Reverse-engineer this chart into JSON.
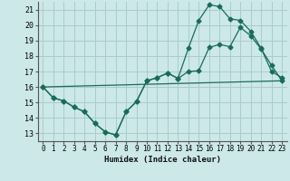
{
  "xlabel": "Humidex (Indice chaleur)",
  "background_color": "#cce8e8",
  "grid_color": "#aacccc",
  "line_color": "#1a6b5a",
  "xlim": [
    -0.5,
    23.5
  ],
  "ylim": [
    12.5,
    21.5
  ],
  "yticks": [
    13,
    14,
    15,
    16,
    17,
    18,
    19,
    20,
    21
  ],
  "xticks": [
    0,
    1,
    2,
    3,
    4,
    5,
    6,
    7,
    8,
    9,
    10,
    11,
    12,
    13,
    14,
    15,
    16,
    17,
    18,
    19,
    20,
    21,
    22,
    23
  ],
  "line1_x": [
    0,
    1,
    2,
    3,
    4,
    5,
    6,
    7,
    8,
    9,
    10,
    11,
    12,
    13,
    14,
    15,
    16,
    17,
    18,
    19,
    20,
    21,
    22,
    23
  ],
  "line1_y": [
    16.0,
    15.3,
    15.1,
    14.7,
    14.4,
    13.65,
    13.1,
    12.9,
    14.4,
    15.05,
    16.4,
    16.6,
    16.9,
    16.55,
    17.0,
    17.05,
    18.55,
    18.75,
    18.6,
    19.85,
    19.3,
    18.45,
    17.4,
    16.4
  ],
  "line2_x": [
    0,
    1,
    2,
    3,
    4,
    5,
    6,
    7,
    8,
    9,
    10,
    11,
    12,
    13,
    14,
    15,
    16,
    17,
    18,
    19,
    20,
    21,
    22,
    23
  ],
  "line2_y": [
    16.0,
    15.3,
    15.1,
    14.7,
    14.4,
    13.65,
    13.1,
    12.9,
    14.4,
    15.05,
    16.4,
    16.6,
    16.9,
    16.55,
    18.5,
    20.3,
    21.3,
    21.2,
    20.4,
    20.3,
    19.6,
    18.5,
    17.0,
    16.6
  ],
  "line3_x": [
    0,
    23
  ],
  "line3_y": [
    16.0,
    16.4
  ],
  "markersize": 2.5,
  "linewidth": 0.9
}
